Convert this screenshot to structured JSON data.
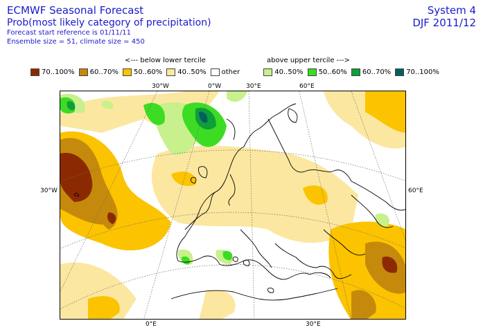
{
  "header": {
    "title": "ECMWF Seasonal Forecast",
    "subtitle": "Prob(most likely category of precipitation)",
    "start_ref": "Forecast start reference is 01/11/11",
    "ensemble": "Ensemble size = 51, climate size = 450",
    "system": "System 4",
    "period": "DJF 2011/12"
  },
  "terciles": {
    "below": "<--- below lower tercile",
    "above": "above upper tercile --->"
  },
  "legend": [
    {
      "label": "70..100%",
      "color": "#8b2a02"
    },
    {
      "label": "60..70%",
      "color": "#c58a0b"
    },
    {
      "label": "50..60%",
      "color": "#fcc300"
    },
    {
      "label": "40..50%",
      "color": "#fbe7a0"
    },
    {
      "label": "other",
      "color": "#ffffff"
    },
    {
      "label": "40..50%",
      "color": "#c8f08c"
    },
    {
      "label": "50..60%",
      "color": "#3cdc24"
    },
    {
      "label": "60..70%",
      "color": "#0f9e3a"
    },
    {
      "label": "70..100%",
      "color": "#006060"
    }
  ],
  "map_labels": {
    "top": [
      "30°W",
      "0°W",
      "30°E",
      "60°E"
    ],
    "left": "30°W",
    "right": "60°E",
    "bottom": [
      "0°E",
      "30°E"
    ]
  }
}
